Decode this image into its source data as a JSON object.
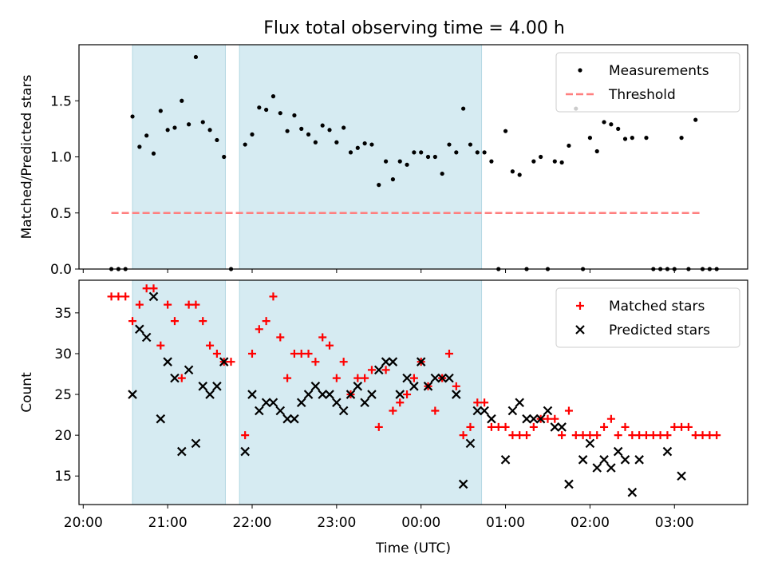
{
  "title": "Flux total observing time = 4.00 h",
  "chart_data": [
    {
      "type": "scatter",
      "ylabel": "Matched/Predicted stars",
      "xlabel": "",
      "xlim": [
        "20:00",
        "03:30"
      ],
      "ylim": [
        0,
        2.0
      ],
      "yticks": [
        "0.0",
        "0.5",
        "1.0",
        "1.5"
      ],
      "grid": false,
      "legend_position": "top-right",
      "shaded_intervals": [
        [
          "20:35",
          "21:41"
        ],
        [
          "21:51",
          "00:43"
        ]
      ],
      "threshold": {
        "name": "Threshold",
        "value": 0.5,
        "x_range": [
          "20:20",
          "03:20"
        ],
        "color": "#ff7f7f"
      },
      "series": [
        {
          "name": "Measurements",
          "color": "#000000",
          "points": [
            [
              "20:20",
              0
            ],
            [
              "20:25",
              0
            ],
            [
              "20:30",
              0
            ],
            [
              "20:35",
              1.36
            ],
            [
              "20:40",
              1.09
            ],
            [
              "20:45",
              1.19
            ],
            [
              "20:50",
              1.03
            ],
            [
              "20:55",
              1.41
            ],
            [
              "21:00",
              1.24
            ],
            [
              "21:05",
              1.26
            ],
            [
              "21:10",
              1.5
            ],
            [
              "21:15",
              1.29
            ],
            [
              "21:20",
              1.89
            ],
            [
              "21:25",
              1.31
            ],
            [
              "21:30",
              1.24
            ],
            [
              "21:35",
              1.15
            ],
            [
              "21:40",
              1.0
            ],
            [
              "21:45",
              0
            ],
            [
              "21:55",
              1.11
            ],
            [
              "22:00",
              1.2
            ],
            [
              "22:05",
              1.44
            ],
            [
              "22:10",
              1.42
            ],
            [
              "22:15",
              1.54
            ],
            [
              "22:20",
              1.39
            ],
            [
              "22:25",
              1.23
            ],
            [
              "22:30",
              1.37
            ],
            [
              "22:35",
              1.25
            ],
            [
              "22:40",
              1.2
            ],
            [
              "22:45",
              1.13
            ],
            [
              "22:50",
              1.28
            ],
            [
              "22:55",
              1.24
            ],
            [
              "23:00",
              1.13
            ],
            [
              "23:05",
              1.26
            ],
            [
              "23:10",
              1.04
            ],
            [
              "23:15",
              1.08
            ],
            [
              "23:20",
              1.12
            ],
            [
              "23:25",
              1.11
            ],
            [
              "23:30",
              0.75
            ],
            [
              "23:35",
              0.96
            ],
            [
              "23:40",
              0.8
            ],
            [
              "23:45",
              0.96
            ],
            [
              "23:50",
              0.93
            ],
            [
              "23:55",
              1.04
            ],
            [
              "00:00",
              1.04
            ],
            [
              "00:05",
              1.0
            ],
            [
              "00:10",
              1.0
            ],
            [
              "00:15",
              0.85
            ],
            [
              "00:20",
              1.11
            ],
            [
              "00:25",
              1.04
            ],
            [
              "00:30",
              1.43
            ],
            [
              "00:35",
              1.11
            ],
            [
              "00:40",
              1.04
            ],
            [
              "00:45",
              1.04
            ],
            [
              "00:50",
              0.96
            ],
            [
              "00:55",
              0
            ],
            [
              "01:00",
              1.23
            ],
            [
              "01:05",
              0.87
            ],
            [
              "01:10",
              0.84
            ],
            [
              "01:15",
              0
            ],
            [
              "01:20",
              0.96
            ],
            [
              "01:25",
              1.0
            ],
            [
              "01:30",
              0
            ],
            [
              "01:35",
              0.96
            ],
            [
              "01:40",
              0.95
            ],
            [
              "01:45",
              1.1
            ],
            [
              "01:50",
              1.43
            ],
            [
              "01:55",
              0
            ],
            [
              "02:00",
              1.17
            ],
            [
              "02:05",
              1.05
            ],
            [
              "02:10",
              1.31
            ],
            [
              "02:15",
              1.29
            ],
            [
              "02:20",
              1.25
            ],
            [
              "02:25",
              1.16
            ],
            [
              "02:30",
              1.17
            ],
            [
              "02:35",
              1.53
            ],
            [
              "02:40",
              1.17
            ],
            [
              "02:45",
              0
            ],
            [
              "02:50",
              0
            ],
            [
              "02:55",
              0
            ],
            [
              "03:00",
              0
            ],
            [
              "03:05",
              1.17
            ],
            [
              "03:10",
              0
            ],
            [
              "03:15",
              1.33
            ],
            [
              "03:20",
              0
            ],
            [
              "03:25",
              0
            ],
            [
              "03:30",
              0
            ]
          ]
        }
      ]
    },
    {
      "type": "scatter",
      "ylabel": "Count",
      "xlabel": "Time (UTC)",
      "xlim": [
        "20:00",
        "03:30"
      ],
      "ylim": [
        11.5,
        39
      ],
      "yticks": [
        "15",
        "20",
        "25",
        "30",
        "35"
      ],
      "xticks": [
        "20:00",
        "21:00",
        "22:00",
        "23:00",
        "00:00",
        "01:00",
        "02:00",
        "03:00"
      ],
      "grid": false,
      "legend_position": "top-right",
      "shaded_intervals": [
        [
          "20:35",
          "21:41"
        ],
        [
          "21:51",
          "00:43"
        ]
      ],
      "series": [
        {
          "name": "Matched stars",
          "marker": "plus",
          "color": "#ff0000",
          "points": [
            [
              "20:20",
              37
            ],
            [
              "20:25",
              37
            ],
            [
              "20:30",
              37
            ],
            [
              "20:35",
              34
            ],
            [
              "20:40",
              36
            ],
            [
              "20:45",
              38
            ],
            [
              "20:50",
              38
            ],
            [
              "20:55",
              31
            ],
            [
              "21:00",
              36
            ],
            [
              "21:05",
              34
            ],
            [
              "21:10",
              27
            ],
            [
              "21:15",
              36
            ],
            [
              "21:20",
              36
            ],
            [
              "21:25",
              34
            ],
            [
              "21:30",
              31
            ],
            [
              "21:35",
              30
            ],
            [
              "21:40",
              29
            ],
            [
              "21:45",
              29
            ],
            [
              "21:55",
              20
            ],
            [
              "22:00",
              30
            ],
            [
              "22:05",
              33
            ],
            [
              "22:10",
              34
            ],
            [
              "22:15",
              37
            ],
            [
              "22:20",
              32
            ],
            [
              "22:25",
              27
            ],
            [
              "22:30",
              30
            ],
            [
              "22:35",
              30
            ],
            [
              "22:40",
              30
            ],
            [
              "22:45",
              29
            ],
            [
              "22:50",
              32
            ],
            [
              "22:55",
              31
            ],
            [
              "23:00",
              27
            ],
            [
              "23:05",
              29
            ],
            [
              "23:10",
              25
            ],
            [
              "23:15",
              27
            ],
            [
              "23:20",
              27
            ],
            [
              "23:25",
              28
            ],
            [
              "23:30",
              21
            ],
            [
              "23:35",
              28
            ],
            [
              "23:40",
              23
            ],
            [
              "23:45",
              24
            ],
            [
              "23:50",
              25
            ],
            [
              "23:55",
              27
            ],
            [
              "00:00",
              29
            ],
            [
              "00:05",
              26
            ],
            [
              "00:10",
              23
            ],
            [
              "00:15",
              27
            ],
            [
              "00:20",
              30
            ],
            [
              "00:25",
              26
            ],
            [
              "00:30",
              20
            ],
            [
              "00:35",
              21
            ],
            [
              "00:40",
              24
            ],
            [
              "00:45",
              24
            ],
            [
              "00:50",
              21
            ],
            [
              "00:55",
              21
            ],
            [
              "01:00",
              21
            ],
            [
              "01:05",
              20
            ],
            [
              "01:10",
              20
            ],
            [
              "01:15",
              20
            ],
            [
              "01:20",
              21
            ],
            [
              "01:25",
              22
            ],
            [
              "01:30",
              22
            ],
            [
              "01:35",
              22
            ],
            [
              "01:40",
              20
            ],
            [
              "01:45",
              23
            ],
            [
              "01:50",
              20
            ],
            [
              "01:55",
              20
            ],
            [
              "02:00",
              20
            ],
            [
              "02:05",
              20
            ],
            [
              "02:10",
              21
            ],
            [
              "02:15",
              22
            ],
            [
              "02:20",
              20
            ],
            [
              "02:25",
              21
            ],
            [
              "02:30",
              20
            ],
            [
              "02:35",
              20
            ],
            [
              "02:40",
              20
            ],
            [
              "02:45",
              20
            ],
            [
              "02:50",
              20
            ],
            [
              "02:55",
              20
            ],
            [
              "03:00",
              21
            ],
            [
              "03:05",
              21
            ],
            [
              "03:10",
              21
            ],
            [
              "03:15",
              20
            ],
            [
              "03:20",
              20
            ],
            [
              "03:25",
              20
            ],
            [
              "03:30",
              20
            ]
          ]
        },
        {
          "name": "Predicted stars",
          "marker": "x",
          "color": "#000000",
          "points": [
            [
              "20:35",
              25
            ],
            [
              "20:40",
              33
            ],
            [
              "20:45",
              32
            ],
            [
              "20:50",
              37
            ],
            [
              "20:55",
              22
            ],
            [
              "21:00",
              29
            ],
            [
              "21:05",
              27
            ],
            [
              "21:10",
              18
            ],
            [
              "21:15",
              28
            ],
            [
              "21:20",
              19
            ],
            [
              "21:25",
              26
            ],
            [
              "21:30",
              25
            ],
            [
              "21:35",
              26
            ],
            [
              "21:40",
              29
            ],
            [
              "21:55",
              18
            ],
            [
              "22:00",
              25
            ],
            [
              "22:05",
              23
            ],
            [
              "22:10",
              24
            ],
            [
              "22:15",
              24
            ],
            [
              "22:20",
              23
            ],
            [
              "22:25",
              22
            ],
            [
              "22:30",
              22
            ],
            [
              "22:35",
              24
            ],
            [
              "22:40",
              25
            ],
            [
              "22:45",
              26
            ],
            [
              "22:50",
              25
            ],
            [
              "22:55",
              25
            ],
            [
              "23:00",
              24
            ],
            [
              "23:05",
              23
            ],
            [
              "23:10",
              25
            ],
            [
              "23:15",
              26
            ],
            [
              "23:20",
              24
            ],
            [
              "23:25",
              25
            ],
            [
              "23:30",
              28
            ],
            [
              "23:35",
              29
            ],
            [
              "23:40",
              29
            ],
            [
              "23:45",
              25
            ],
            [
              "23:50",
              27
            ],
            [
              "23:55",
              26
            ],
            [
              "00:00",
              29
            ],
            [
              "00:05",
              26
            ],
            [
              "00:10",
              27
            ],
            [
              "00:15",
              27
            ],
            [
              "00:20",
              27
            ],
            [
              "00:25",
              25
            ],
            [
              "00:30",
              14
            ],
            [
              "00:35",
              19
            ],
            [
              "00:40",
              23
            ],
            [
              "00:45",
              23
            ],
            [
              "00:50",
              22
            ],
            [
              "01:00",
              17
            ],
            [
              "01:05",
              23
            ],
            [
              "01:10",
              24
            ],
            [
              "01:15",
              22
            ],
            [
              "01:20",
              22
            ],
            [
              "01:25",
              22
            ],
            [
              "01:30",
              23
            ],
            [
              "01:35",
              21
            ],
            [
              "01:40",
              21
            ],
            [
              "01:45",
              14
            ],
            [
              "01:55",
              17
            ],
            [
              "02:00",
              19
            ],
            [
              "02:05",
              16
            ],
            [
              "02:10",
              17
            ],
            [
              "02:15",
              16
            ],
            [
              "02:20",
              18
            ],
            [
              "02:25",
              17
            ],
            [
              "02:30",
              13
            ],
            [
              "02:35",
              17
            ],
            [
              "02:55",
              18
            ],
            [
              "03:05",
              15
            ]
          ]
        }
      ]
    }
  ]
}
